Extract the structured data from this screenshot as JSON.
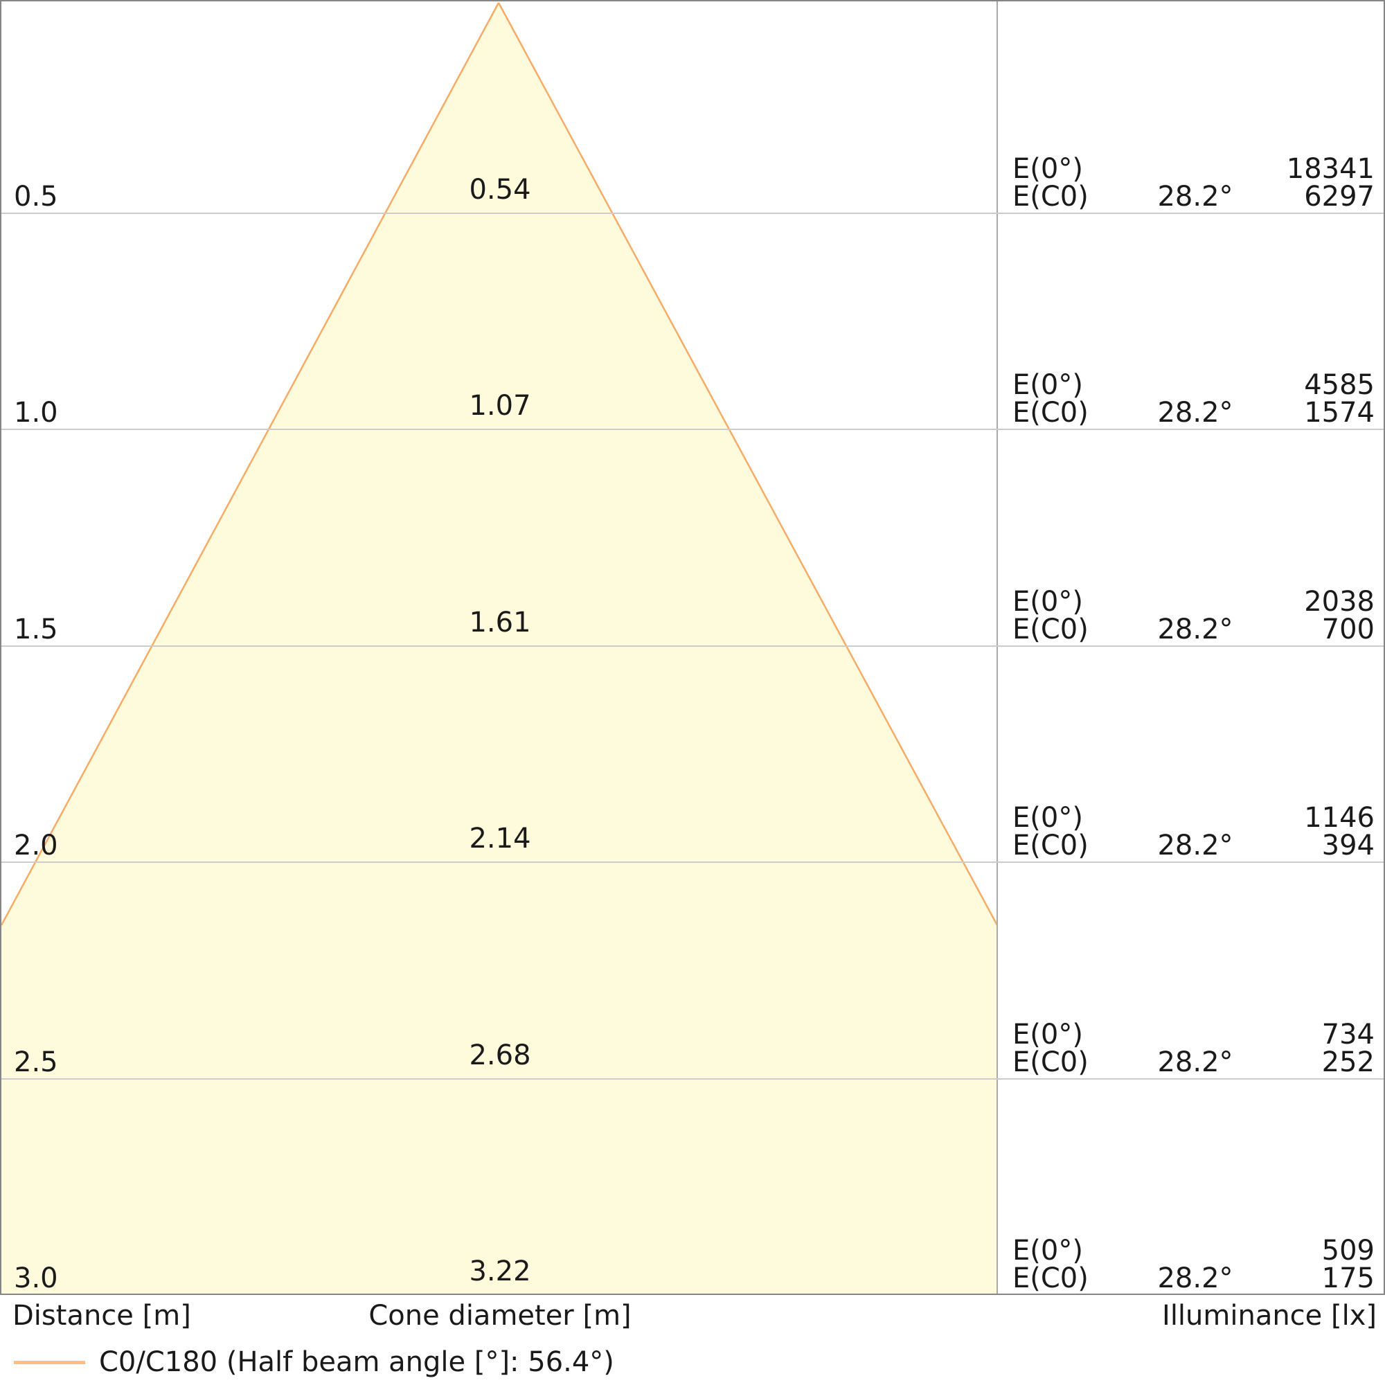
{
  "chart_data": {
    "type": "area",
    "subtype": "light-cone-diagram",
    "title": "",
    "distances_m": [
      0.5,
      1.0,
      1.5,
      2.0,
      2.5,
      3.0
    ],
    "cone_diameters_m": [
      0.54,
      1.07,
      1.61,
      2.14,
      2.68,
      3.22
    ],
    "illuminance_E0_lx": [
      18341,
      4585,
      2038,
      1146,
      734,
      509
    ],
    "illuminance_EC0_lx": [
      6297,
      1574,
      700,
      394,
      252,
      175
    ],
    "ec0_angle_deg": 28.2,
    "half_beam_angle_deg": 56.4,
    "xlabel_left": "Distance [m]",
    "xlabel_center": "Cone diameter [m]",
    "xlabel_right": "Illuminance [lx]",
    "legend_entries": [
      "C0/C180 (Half beam angle [°]: 56.4°)"
    ],
    "legend_position": "bottom-left",
    "grid": true,
    "y_axis_range_m": [
      0.0,
      3.0
    ]
  },
  "rows": [
    {
      "distance": "0.5",
      "diameter": "0.54",
      "e0_label": "E(0°)",
      "e0_value": "18341",
      "ec0_label": "E(C0)",
      "ec0_angle": "28.2°",
      "ec0_value": "6297"
    },
    {
      "distance": "1.0",
      "diameter": "1.07",
      "e0_label": "E(0°)",
      "e0_value": "4585",
      "ec0_label": "E(C0)",
      "ec0_angle": "28.2°",
      "ec0_value": "1574"
    },
    {
      "distance": "1.5",
      "diameter": "1.61",
      "e0_label": "E(0°)",
      "e0_value": "2038",
      "ec0_label": "E(C0)",
      "ec0_angle": "28.2°",
      "ec0_value": "700"
    },
    {
      "distance": "2.0",
      "diameter": "2.14",
      "e0_label": "E(0°)",
      "e0_value": "1146",
      "ec0_label": "E(C0)",
      "ec0_angle": "28.2°",
      "ec0_value": "394"
    },
    {
      "distance": "2.5",
      "diameter": "2.68",
      "e0_label": "E(0°)",
      "e0_value": "734",
      "ec0_label": "E(C0)",
      "ec0_angle": "28.2°",
      "ec0_value": "252"
    },
    {
      "distance": "3.0",
      "diameter": "3.22",
      "e0_label": "E(0°)",
      "e0_value": "509",
      "ec0_label": "E(C0)",
      "ec0_angle": "28.2°",
      "ec0_value": "175"
    }
  ],
  "footer": {
    "distance_axis_label": "Distance [m]",
    "cone_axis_label": "Cone diameter [m]",
    "illuminance_axis_label": "Illuminance [lx]"
  },
  "legend": {
    "label": "C0/C180 (Half beam angle [°]: 56.4°)"
  },
  "colors": {
    "cone_fill": "#fdfbdc",
    "cone_stroke": "#f6ab66",
    "legend_swatch": "#fbbe86",
    "gridline": "#cccccb",
    "border": "#858585",
    "divider": "#a9a9a9",
    "text": "#1a1a1a"
  }
}
